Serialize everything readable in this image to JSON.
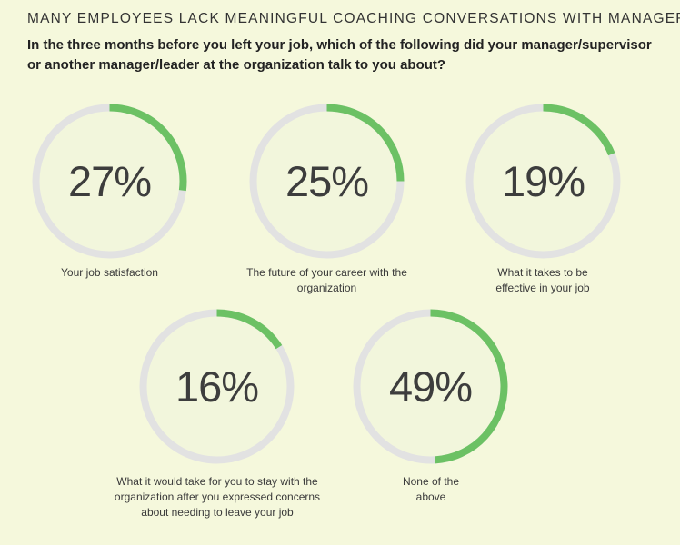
{
  "title": "MANY EMPLOYEES LACK MEANINGFUL COACHING CONVERSATIONS WITH MANAGERS",
  "question": "In the three months before you left your job, which of the following did your manager/supervisor or another manager/leader at the organization talk to you about?",
  "colors": {
    "background": "#f5f8dc",
    "ring_track": "#e2e2e2",
    "ring_fill": "#6cc164",
    "ring_inner": "#f2f6dc"
  },
  "chart_data": {
    "type": "pie",
    "title": "MANY EMPLOYEES LACK MEANINGFUL COACHING CONVERSATIONS WITH MANAGERS",
    "categories": [
      "Your job satisfaction",
      "The future of your career with the organization",
      "What it takes to be effective in your job",
      "What it would take for you to stay with the organization after you expressed concerns about needing to leave your job",
      "None of the above"
    ],
    "values": [
      27,
      25,
      19,
      16,
      49
    ],
    "value_labels": [
      "27%",
      "25%",
      "19%",
      "16%",
      "49%"
    ],
    "unit": "%"
  },
  "items": [
    {
      "value": 27,
      "display": "27%",
      "label": "Your job satisfaction"
    },
    {
      "value": 25,
      "display": "25%",
      "label": "The future of your career with the organization"
    },
    {
      "value": 19,
      "display": "19%",
      "label": "What it takes to be effective in your job"
    },
    {
      "value": 16,
      "display": "16%",
      "label": "What it would take for you to stay with the organization after you expressed concerns about needing to leave your job"
    },
    {
      "value": 49,
      "display": "49%",
      "label": "None of the above"
    }
  ]
}
